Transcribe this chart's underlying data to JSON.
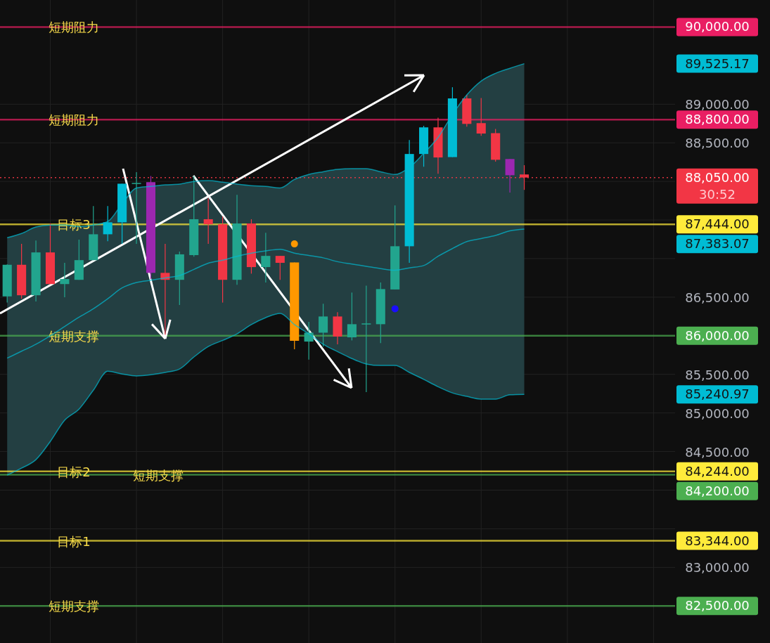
{
  "chart_data": {
    "type": "candlestick",
    "categories": [
      null,
      null,
      null,
      null,
      null,
      null,
      null,
      null,
      null,
      null,
      null,
      null,
      null,
      null,
      null,
      null,
      null,
      null,
      null,
      null,
      null,
      null,
      null,
      null,
      null,
      null,
      null,
      null,
      null,
      null,
      null,
      null,
      null,
      null,
      null,
      null,
      null,
      null,
      null,
      null,
      null,
      null,
      null,
      null,
      null,
      null,
      null
    ],
    "ohlc": [
      [
        86510,
        86925,
        86430,
        86920
      ],
      [
        86920,
        87190,
        86480,
        86525
      ],
      [
        86525,
        87235,
        86445,
        87080
      ],
      [
        87080,
        87455,
        86670,
        86670
      ],
      [
        86670,
        86945,
        86500,
        86735
      ],
      [
        86725,
        87245,
        86725,
        86980
      ],
      [
        86980,
        87680,
        86980,
        87315
      ],
      [
        87315,
        87680,
        87225,
        87470
      ],
      [
        87470,
        87970,
        87190,
        87970
      ],
      [
        87970,
        88120,
        87190,
        87980
      ],
      [
        87990,
        88070,
        86735,
        86815
      ],
      [
        86815,
        87190,
        86015,
        86725
      ],
      [
        86725,
        87090,
        86400,
        87055
      ],
      [
        87045,
        88070,
        87025,
        87510
      ],
      [
        87510,
        87780,
        87190,
        87445
      ],
      [
        87445,
        87545,
        86430,
        86725
      ],
      [
        86725,
        87825,
        86660,
        87455
      ],
      [
        87455,
        87510,
        86805,
        86890
      ],
      [
        86890,
        87335,
        86690,
        87035
      ],
      [
        87035,
        87035,
        86725,
        86945
      ],
      [
        86950,
        86950,
        85825,
        85935
      ],
      [
        85925,
        86180,
        85690,
        86040
      ],
      [
        86040,
        86415,
        85860,
        86250
      ],
      [
        86250,
        86305,
        85890,
        85990
      ],
      [
        85980,
        86560,
        85940,
        86150
      ],
      [
        86150,
        86650,
        85270,
        86160
      ],
      [
        86150,
        86690,
        85905,
        86605
      ],
      [
        86600,
        87690,
        86600,
        87160
      ],
      [
        87160,
        88535,
        86945,
        88355
      ],
      [
        88355,
        88720,
        88190,
        88700
      ],
      [
        88700,
        88825,
        88100,
        88310
      ],
      [
        88315,
        89220,
        88315,
        89075
      ],
      [
        89075,
        89120,
        88710,
        88745
      ],
      [
        88755,
        89080,
        88590,
        88620
      ],
      [
        88625,
        88680,
        88255,
        88280
      ],
      [
        88290,
        88290,
        87855,
        88080
      ],
      [
        88090,
        88210,
        87890,
        88050
      ],
      null,
      null,
      null,
      null,
      null,
      null,
      null,
      null,
      null,
      null
    ],
    "colors": [
      "#22a58e",
      "#f23645",
      "#22a58e",
      "#f23645",
      "#22a58e",
      "#22a58e",
      "#22a58e",
      "#00bcd4",
      "#00bcd4",
      "#22a58e",
      "#9c27b0",
      "#f23645",
      "#22a58e",
      "#22a58e",
      "#f23645",
      "#f23645",
      "#22a58e",
      "#f23645",
      "#22a58e",
      "#f23645",
      "#ff9800",
      "#22a58e",
      "#22a58e",
      "#f23645",
      "#22a58e",
      "#22a58e",
      "#22a58e",
      "#22a58e",
      "#00bcd4",
      "#00bcd4",
      "#f23645",
      "#00bcd4",
      "#f23645",
      "#f23645",
      "#f23645",
      "#9c27b0",
      "#f23645",
      null,
      null,
      null,
      null,
      null,
      null,
      null,
      null,
      null,
      null
    ],
    "series": [
      {
        "type": "line",
        "color": "#00bcd4",
        "values": [
          87270,
          87325,
          87410,
          87435,
          87435,
          87415,
          87435,
          87480,
          87710,
          87915,
          87935,
          87955,
          87965,
          88000,
          88010,
          87990,
          87965,
          87945,
          87935,
          87915,
          88025,
          88090,
          88125,
          88155,
          88165,
          88165,
          88125,
          88090,
          88180,
          88365,
          88570,
          88865,
          89120,
          89300,
          89400,
          89465,
          89525.17,
          null,
          null,
          null,
          null,
          null,
          null,
          null,
          null,
          null,
          null
        ]
      },
      {
        "type": "line",
        "color": "#00bcd4",
        "values": [
          85710,
          85800,
          85890,
          86000,
          86120,
          86240,
          86350,
          86480,
          86620,
          86690,
          86720,
          86750,
          86780,
          86860,
          86940,
          86980,
          87030,
          87070,
          87100,
          87120,
          87070,
          87040,
          87010,
          86960,
          86930,
          86900,
          86870,
          86850,
          86880,
          86910,
          87030,
          87130,
          87220,
          87260,
          87300,
          87360,
          87383.07,
          null,
          null,
          null,
          null,
          null,
          null,
          null,
          null,
          null,
          null
        ],
        "lower": [
          84195,
          84285,
          84395,
          84630,
          84905,
          85050,
          85295,
          85540,
          85505,
          85480,
          85495,
          85525,
          85570,
          85725,
          85860,
          85940,
          86025,
          86145,
          86235,
          86290,
          86145,
          86025,
          85890,
          85795,
          85705,
          85635,
          85615,
          85615,
          85525,
          85435,
          85340,
          85260,
          85215,
          85180,
          85180,
          85235,
          85240.97,
          null,
          null,
          null,
          null,
          null,
          null,
          null,
          null,
          null,
          null
        ],
        "upper": [
          87270,
          87325,
          87410,
          87435,
          87435,
          87415,
          87435,
          87480,
          87710,
          87915,
          87935,
          87955,
          87965,
          88000,
          88010,
          87990,
          87965,
          87945,
          87935,
          87915,
          88025,
          88090,
          88125,
          88155,
          88165,
          88165,
          88125,
          88090,
          88180,
          88365,
          88570,
          88865,
          89120,
          89300,
          89400,
          89465,
          89525.17,
          null,
          null,
          null,
          null,
          null,
          null,
          null,
          null,
          null,
          null
        ]
      },
      {
        "type": "line",
        "color": "#00bcd4",
        "values": [
          84195,
          84285,
          84395,
          84630,
          84905,
          85050,
          85295,
          85540,
          85505,
          85480,
          85495,
          85525,
          85570,
          85725,
          85860,
          85940,
          86025,
          86145,
          86235,
          86290,
          86145,
          86025,
          85890,
          85795,
          85705,
          85635,
          85615,
          85615,
          85525,
          85435,
          85340,
          85260,
          85215,
          85180,
          85180,
          85235,
          85240.97,
          null,
          null,
          null,
          null,
          null,
          null,
          null,
          null,
          null,
          null
        ]
      },
      {
        "type": "scatter",
        "color": "#ff9800",
        "values": [
          null,
          null,
          null,
          null,
          null,
          null,
          null,
          null,
          null,
          null,
          null,
          null,
          null,
          null,
          null,
          null,
          null,
          null,
          null,
          null,
          87190,
          null,
          null,
          null,
          null,
          null,
          null,
          null,
          null,
          null,
          null,
          null,
          null,
          null,
          null,
          null,
          null,
          null,
          null,
          null,
          null,
          null,
          null,
          null,
          null,
          null,
          null
        ]
      },
      {
        "type": "scatter",
        "color": "#1a0dff",
        "values": [
          null,
          null,
          null,
          null,
          null,
          null,
          null,
          null,
          null,
          null,
          null,
          null,
          null,
          null,
          null,
          null,
          null,
          null,
          null,
          null,
          null,
          null,
          null,
          null,
          null,
          null,
          null,
          86350,
          null,
          null,
          null,
          null,
          null,
          null,
          null,
          null,
          null,
          null,
          null,
          null,
          null,
          null,
          null,
          null,
          null,
          null,
          null
        ]
      }
    ],
    "ylim": [
      82020,
      90350
    ],
    "yticks": [
      {
        "value": 89000,
        "label": "89,000.00"
      },
      {
        "value": 88500,
        "label": "88,500.00"
      },
      {
        "value": 88000,
        "label": null
      },
      {
        "value": 87500,
        "label": null
      },
      {
        "value": 87000,
        "label": null
      },
      {
        "value": 86500,
        "label": "86,500.00"
      },
      {
        "value": 85500,
        "label": "85,500.00"
      },
      {
        "value": 85000,
        "label": "85,000.00"
      },
      {
        "value": 84500,
        "label": "84,500.00"
      },
      {
        "value": 84000,
        "label": null
      },
      {
        "value": 83500,
        "label": null
      },
      {
        "value": 83000,
        "label": "83,000.00"
      }
    ],
    "grid": true,
    "ref_lines": [
      {
        "axis": "y",
        "value": 90000,
        "label": "短期阻力",
        "color": "#e91e63"
      },
      {
        "axis": "y",
        "value": 88800,
        "label": "短期阻力",
        "color": "#e91e63"
      },
      {
        "axis": "y",
        "value": 88050,
        "color": "#f23645",
        "line_style": "dotted"
      },
      {
        "axis": "y",
        "value": 87444,
        "label": "目标3",
        "color": "#ffeb3b"
      },
      {
        "axis": "y",
        "value": 86000,
        "label": "短期支撑",
        "color": "#4caf50"
      },
      {
        "axis": "y",
        "value": 84244,
        "label": "目标2",
        "color": "#ffeb3b"
      },
      {
        "axis": "y",
        "value": 84200,
        "label": "短期支撑",
        "color": "#4caf50"
      },
      {
        "axis": "y",
        "value": 83344,
        "label": "目标1",
        "color": "#ffeb3b"
      },
      {
        "axis": "y",
        "value": 82500,
        "label": "短期支撑",
        "color": "#4caf50"
      }
    ],
    "annotations": [
      "90,000.00",
      "89,525.17",
      "88,800.00",
      "88,050.00",
      "87,444.00",
      "87,383.07",
      "86,000.00",
      "85,240.97",
      "84,244.00",
      "84,200.00",
      "83,344.00",
      "82,500.00",
      "30:52"
    ]
  }
}
